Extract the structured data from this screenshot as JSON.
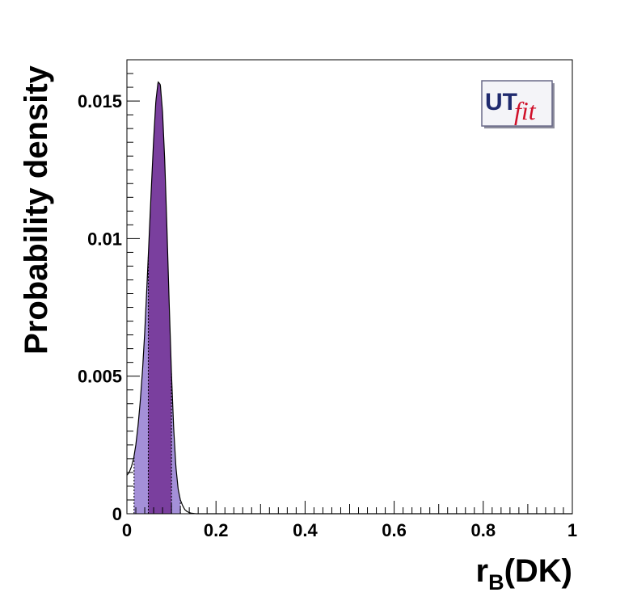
{
  "logo": {
    "part1": "UT",
    "part2": "fit",
    "colors": {
      "ut": "#1f2a6e",
      "fit": "#d0102a"
    }
  },
  "chart_data": {
    "type": "area",
    "xlabel_main": "r",
    "xlabel_sub": "B",
    "xlabel_rest": "(DK)",
    "ylabel": "Probability density",
    "xlim": [
      0,
      1
    ],
    "ylim": [
      0,
      0.0165
    ],
    "x_ticks": [
      0,
      0.2,
      0.4,
      0.6,
      0.8,
      1
    ],
    "x_tick_labels": [
      "0",
      "0.2",
      "0.4",
      "0.6",
      "0.8",
      "1"
    ],
    "y_ticks": [
      0,
      0.005,
      0.01,
      0.015
    ],
    "y_tick_labels": [
      "0",
      "0.005",
      "0.01",
      "0.015"
    ],
    "grid": false,
    "distribution": {
      "x": [
        0.0,
        0.005,
        0.01,
        0.015,
        0.02,
        0.025,
        0.03,
        0.035,
        0.04,
        0.045,
        0.05,
        0.055,
        0.06,
        0.065,
        0.07,
        0.075,
        0.08,
        0.085,
        0.09,
        0.095,
        0.1,
        0.105,
        0.11,
        0.115,
        0.12,
        0.125,
        0.13,
        0.135,
        0.14,
        0.145,
        0.15,
        0.155,
        0.16
      ],
      "y": [
        0.0014,
        0.0015,
        0.0017,
        0.002,
        0.0025,
        0.0032,
        0.0041,
        0.0052,
        0.0066,
        0.0083,
        0.0101,
        0.0119,
        0.0136,
        0.015,
        0.0157,
        0.0156,
        0.0146,
        0.0128,
        0.0103,
        0.0076,
        0.0051,
        0.0031,
        0.0017,
        0.0009,
        0.0005,
        0.0003,
        0.00015,
        8e-05,
        4e-05,
        2e-05,
        1e-05,
        0.0,
        0.0
      ]
    },
    "interval_68": [
      0.048,
      0.1
    ],
    "interval_95": [
      0.016,
      0.12
    ],
    "colors": {
      "dark": "#7a3f9e",
      "light": "#a490d8",
      "line": "#000000"
    }
  }
}
